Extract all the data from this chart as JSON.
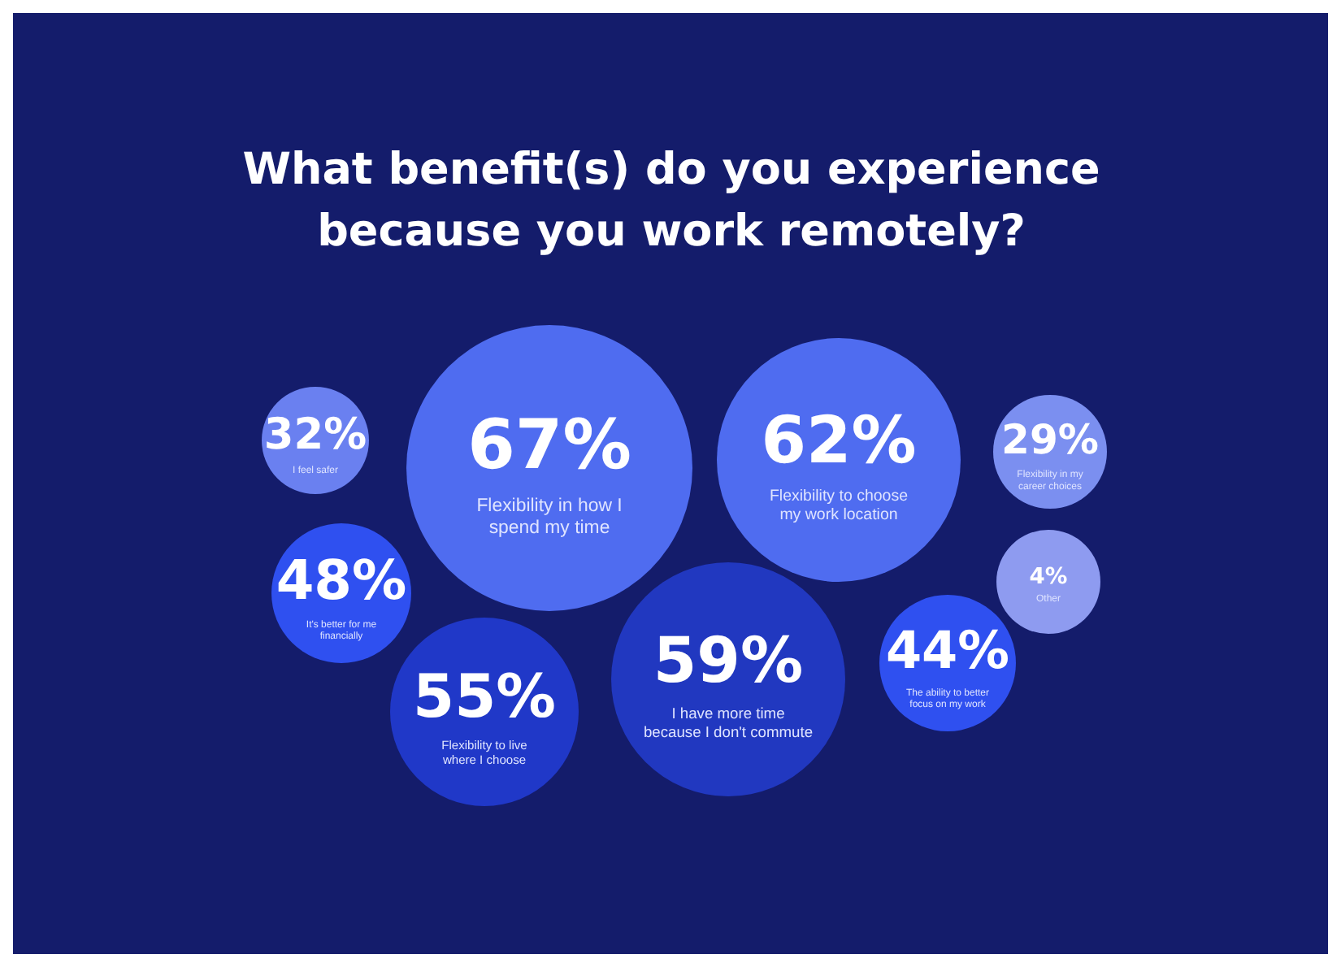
{
  "chart_data": {
    "type": "other",
    "title": "What benefit(s) do you experience because you work remotely?",
    "categories": [
      "I feel safer",
      "Flexibility in how I spend my time",
      "Flexibility to choose my work location",
      "Flexibility in my career choices",
      "It's better for me financially",
      "Other",
      "Flexibility to live where I choose",
      "I have more time because I don't commute",
      "The ability to better focus on my work"
    ],
    "values": [
      32,
      67,
      62,
      29,
      48,
      4,
      55,
      59,
      44
    ],
    "value_labels": [
      "32%",
      "67%",
      "62%",
      "29%",
      "48%",
      "4%",
      "55%",
      "59%",
      "44%"
    ],
    "colors": [
      "#6a80f0",
      "#4f6cf0",
      "#4f6cf0",
      "#7b8ff0",
      "#2f50f0",
      "#8e9bf0",
      "#2038c8",
      "#2138c0",
      "#2f50f0"
    ]
  }
}
